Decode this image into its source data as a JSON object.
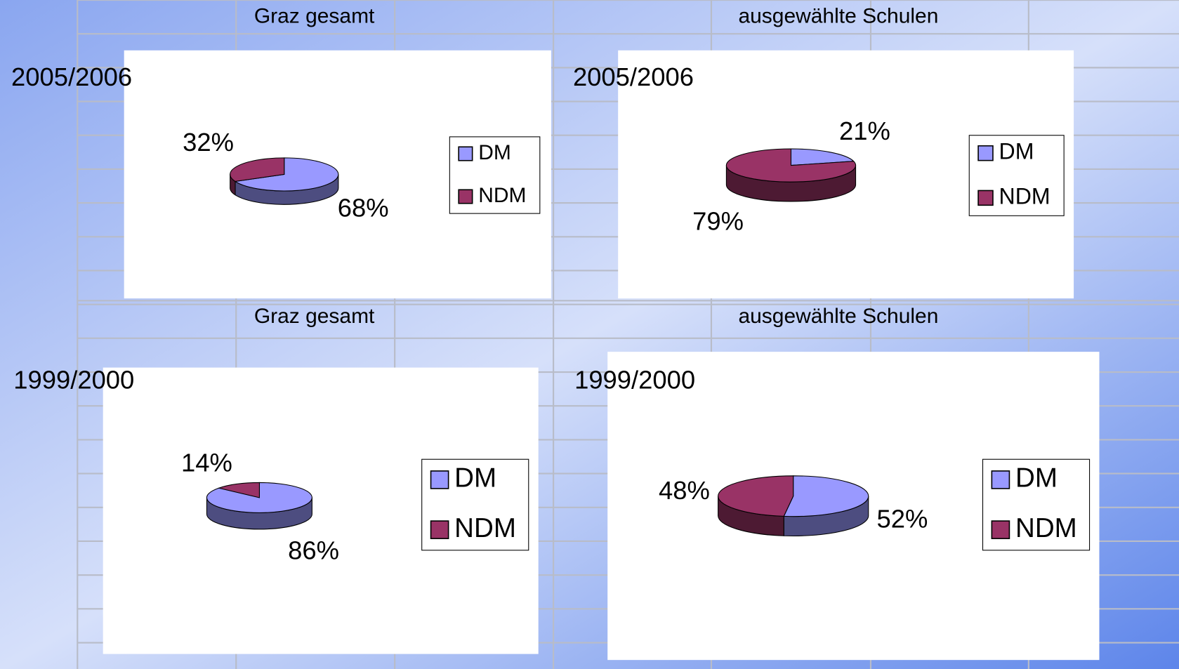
{
  "chart_data": [
    {
      "type": "pie",
      "header": "Graz gesamt",
      "title": "2005/2006",
      "categories": [
        "DM",
        "NDM"
      ],
      "values": [
        68,
        32
      ],
      "value_labels": [
        "68%",
        "32%"
      ],
      "colors": [
        "#9999ff",
        "#993366"
      ],
      "legend": "right"
    },
    {
      "type": "pie",
      "header": "ausgewählte Schulen",
      "title": "2005/2006",
      "categories": [
        "DM",
        "NDM"
      ],
      "values": [
        21,
        79
      ],
      "value_labels": [
        "21%",
        "79%"
      ],
      "colors": [
        "#9999ff",
        "#993366"
      ],
      "legend": "right"
    },
    {
      "type": "pie",
      "header": "Graz gesamt",
      "title": "1999/2000",
      "categories": [
        "DM",
        "NDM"
      ],
      "values": [
        86,
        14
      ],
      "value_labels": [
        "86%",
        "14%"
      ],
      "colors": [
        "#9999ff",
        "#993366"
      ],
      "legend": "right"
    },
    {
      "type": "pie",
      "header": "ausgewählte Schulen",
      "title": "1999/2000",
      "categories": [
        "DM",
        "NDM"
      ],
      "values": [
        52,
        48
      ],
      "value_labels": [
        "52%",
        "48%"
      ],
      "colors": [
        "#9999ff",
        "#993366"
      ],
      "legend": "right"
    }
  ]
}
